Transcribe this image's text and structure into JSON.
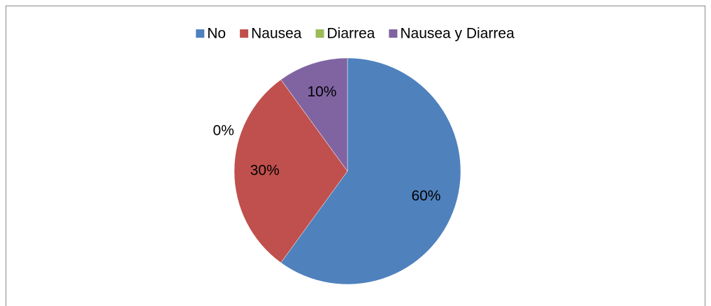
{
  "chart_data": {
    "type": "pie",
    "categories": [
      "No",
      "Nausea",
      "Diarrea",
      "Nausea y Diarrea"
    ],
    "values": [
      60,
      30,
      0,
      10
    ],
    "value_labels": [
      "60%",
      "30%",
      "0%",
      "10%"
    ],
    "colors": [
      "#4f81bd",
      "#c0504d",
      "#9bbb59",
      "#8064a2"
    ],
    "legend": "top"
  }
}
